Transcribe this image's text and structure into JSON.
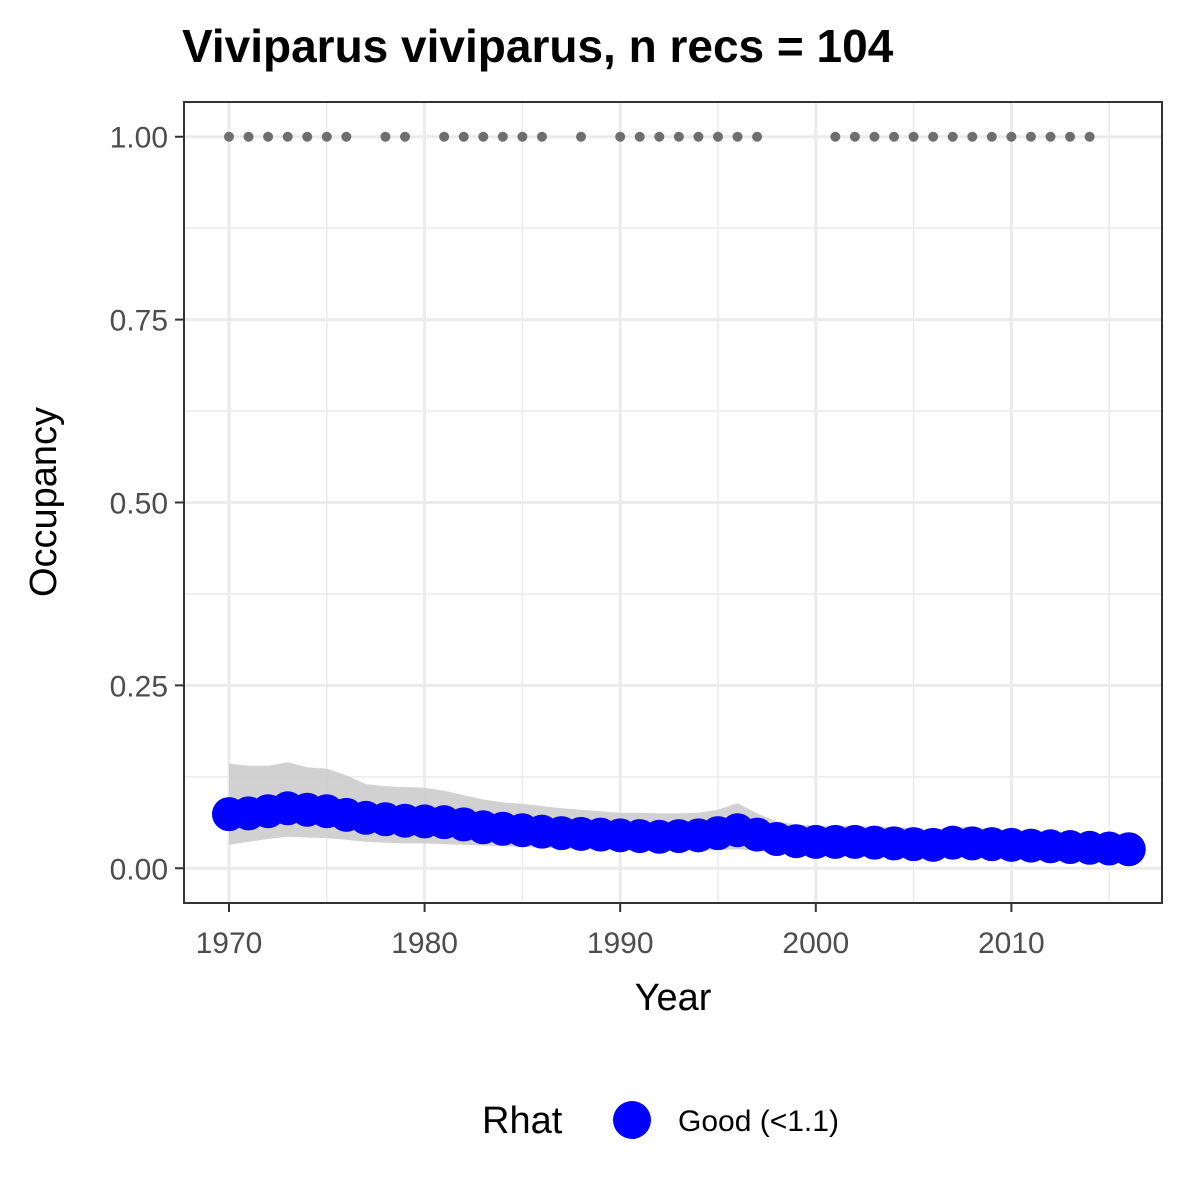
{
  "chart_data": {
    "type": "line",
    "title": "Viviparus viviparus, n recs = 104",
    "xlabel": "Year",
    "ylabel": "Occupancy",
    "xlim": [
      1967.7,
      2017.7
    ],
    "ylim": [
      -0.0475,
      1.0475
    ],
    "x_ticks": [
      1970,
      1980,
      1990,
      2000,
      2010
    ],
    "x_tick_labels": [
      "1970",
      "1980",
      "1990",
      "2000",
      "2010"
    ],
    "y_ticks": [
      0,
      0.25,
      0.5,
      0.75,
      1.0
    ],
    "y_tick_labels": [
      "0.00",
      "0.25",
      "0.50",
      "0.75",
      "1.00"
    ],
    "grid": true,
    "series": [
      {
        "name": "Good (<1.1)",
        "color": "#0000ff",
        "x": [
          1970,
          1971,
          1972,
          1973,
          1974,
          1975,
          1976,
          1977,
          1978,
          1979,
          1980,
          1981,
          1982,
          1983,
          1984,
          1985,
          1986,
          1987,
          1988,
          1989,
          1990,
          1991,
          1992,
          1993,
          1994,
          1995,
          1996,
          1997,
          1998,
          1999,
          2000,
          2001,
          2002,
          2003,
          2004,
          2005,
          2006,
          2007,
          2008,
          2009,
          2010,
          2011,
          2012,
          2013,
          2014,
          2015,
          2016
        ],
        "values": [
          0.074,
          0.075,
          0.078,
          0.082,
          0.08,
          0.078,
          0.073,
          0.069,
          0.067,
          0.065,
          0.064,
          0.063,
          0.06,
          0.056,
          0.054,
          0.052,
          0.05,
          0.048,
          0.047,
          0.046,
          0.045,
          0.044,
          0.043,
          0.044,
          0.045,
          0.048,
          0.052,
          0.046,
          0.04,
          0.037,
          0.036,
          0.036,
          0.036,
          0.035,
          0.034,
          0.033,
          0.032,
          0.035,
          0.034,
          0.033,
          0.032,
          0.031,
          0.03,
          0.029,
          0.028,
          0.027,
          0.026
        ],
        "ci_lower": [
          0.032,
          0.036,
          0.04,
          0.043,
          0.042,
          0.041,
          0.039,
          0.036,
          0.035,
          0.034,
          0.034,
          0.033,
          0.032,
          0.031,
          0.03,
          0.029,
          0.028,
          0.027,
          0.026,
          0.025,
          0.025,
          0.024,
          0.024,
          0.024,
          0.024,
          0.025,
          0.026,
          0.024,
          0.021,
          0.019,
          0.019,
          0.019,
          0.019,
          0.018,
          0.018,
          0.017,
          0.017,
          0.018,
          0.018,
          0.017,
          0.017,
          0.016,
          0.016,
          0.015,
          0.015,
          0.014,
          0.013
        ],
        "ci_upper": [
          0.143,
          0.14,
          0.14,
          0.145,
          0.138,
          0.136,
          0.127,
          0.115,
          0.112,
          0.111,
          0.11,
          0.106,
          0.1,
          0.094,
          0.09,
          0.088,
          0.085,
          0.082,
          0.08,
          0.078,
          0.076,
          0.076,
          0.075,
          0.075,
          0.076,
          0.08,
          0.089,
          0.075,
          0.064,
          0.06,
          0.058,
          0.058,
          0.058,
          0.057,
          0.056,
          0.055,
          0.053,
          0.057,
          0.056,
          0.054,
          0.052,
          0.051,
          0.05,
          0.048,
          0.047,
          0.045,
          0.043
        ]
      }
    ],
    "record_years": {
      "y": 1.0,
      "color": "#6e6e6e",
      "x": [
        1970,
        1971,
        1972,
        1973,
        1974,
        1975,
        1976,
        1978,
        1979,
        1981,
        1982,
        1983,
        1984,
        1985,
        1986,
        1988,
        1990,
        1991,
        1992,
        1993,
        1994,
        1995,
        1996,
        1997,
        2001,
        2002,
        2003,
        2004,
        2005,
        2006,
        2007,
        2008,
        2009,
        2010,
        2011,
        2012,
        2013,
        2014
      ]
    },
    "legend": {
      "title": "Rhat",
      "position": "bottom",
      "entries": [
        {
          "label": "Good (<1.1)",
          "color": "#0000ff"
        }
      ]
    },
    "colors": {
      "ci_band": "#cccccc",
      "grid": "#ebebeb",
      "panel_border": "#333333"
    }
  }
}
